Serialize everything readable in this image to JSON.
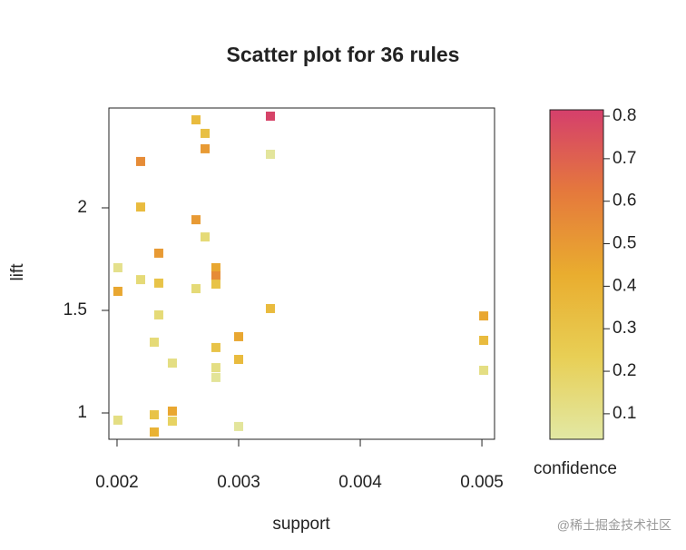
{
  "chart_data": {
    "type": "scatter",
    "title": "Scatter plot for 36 rules",
    "x_label": "support",
    "y_label": "lift",
    "colorbar_label": "confidence",
    "xlim": [
      0.001933,
      0.005104
    ],
    "xticks": [
      0.002,
      0.003,
      0.004,
      0.005
    ],
    "ylim": [
      0.8717,
      2.4867
    ],
    "yticks": [
      1,
      1.5,
      2
    ],
    "clim": [
      0.04,
      0.815
    ],
    "cticks": [
      0.1,
      0.2,
      0.3,
      0.4,
      0.5,
      0.6,
      0.7,
      0.8
    ],
    "colormap": [
      "#e2e8a4",
      "#e8cf55",
      "#e9ad2f",
      "#e5793c",
      "#d53f6c"
    ],
    "x": [
      0.002007,
      0.002007,
      0.002007,
      0.002194,
      0.002194,
      0.002194,
      0.002306,
      0.002306,
      0.002306,
      0.002343,
      0.002343,
      0.002343,
      0.002455,
      0.002455,
      0.002455,
      0.002649,
      0.002649,
      0.002649,
      0.002724,
      0.002724,
      0.002724,
      0.002813,
      0.002813,
      0.002813,
      0.002813,
      0.002813,
      0.002813,
      0.003,
      0.003,
      0.003,
      0.003261,
      0.003261,
      0.003261,
      0.005015,
      0.005015,
      0.005015
    ],
    "y": [
      1.708,
      1.593,
      0.965,
      2.226,
      2.004,
      1.65,
      0.991,
      0.907,
      1.345,
      1.779,
      1.633,
      1.478,
      1.243,
      1.009,
      0.96,
      2.429,
      1.942,
      1.606,
      2.363,
      2.288,
      1.858,
      1.708,
      1.668,
      1.628,
      1.319,
      1.221,
      1.173,
      1.372,
      1.261,
      0.934,
      2.447,
      2.261,
      1.509,
      1.473,
      1.354,
      1.208
    ],
    "confidence": [
      0.1,
      0.45,
      0.12,
      0.55,
      0.35,
      0.15,
      0.3,
      0.4,
      0.15,
      0.5,
      0.3,
      0.15,
      0.12,
      0.45,
      0.2,
      0.35,
      0.5,
      0.15,
      0.32,
      0.5,
      0.15,
      0.45,
      0.55,
      0.3,
      0.3,
      0.12,
      0.07,
      0.45,
      0.35,
      0.06,
      0.8,
      0.06,
      0.35,
      0.45,
      0.35,
      0.12
    ]
  },
  "watermark": "@稀土掘金技术社区"
}
